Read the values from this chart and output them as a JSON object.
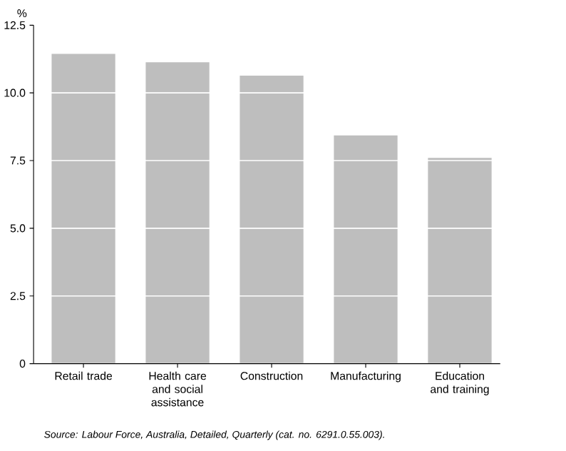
{
  "chart_data": {
    "type": "bar",
    "ylabel": "%",
    "categories": [
      "Retail trade",
      "Health care and social assistance",
      "Construction",
      "Manufacturing",
      "Education and training"
    ],
    "values": [
      11.44,
      11.13,
      10.64,
      8.43,
      7.6
    ],
    "color": "#bebebe",
    "ylim": [
      0,
      12.5
    ],
    "yticks": [
      0,
      {
        "value": 2.5,
        "label": "2.5"
      },
      {
        "value": 5,
        "label": "5.0"
      },
      {
        "value": 7.5,
        "label": "7.5"
      },
      {
        "value": 10,
        "label": "10.0"
      },
      {
        "value": 12.5,
        "label": "12.5"
      }
    ],
    "grid": "y",
    "annotations": [
      "Source: Labour Force, Australia, Detailed, Quarterly (cat. no. 6291.0.55.003)."
    ]
  }
}
